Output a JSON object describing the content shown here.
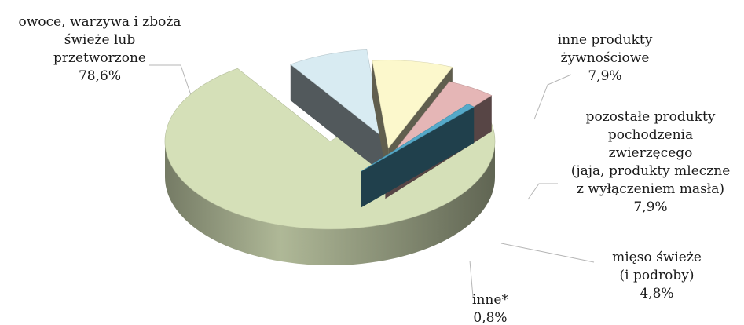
{
  "chart_data": {
    "type": "pie",
    "style": "3d-exploded",
    "slices": [
      {
        "id": "fruit",
        "label_lines": [
          "owoce, warzywa i zboża",
          "świeże lub",
          "przetworzone"
        ],
        "value_text": "78,6%",
        "value": 78.6,
        "color": "#d5e0b8"
      },
      {
        "id": "food",
        "label_lines": [
          "inne produkty",
          "żywnościowe"
        ],
        "value_text": "7,9%",
        "value": 7.9,
        "color": "#d8ebf2"
      },
      {
        "id": "animal",
        "label_lines": [
          "pozostałe produkty",
          "pochodzenia",
          "zwierzęcego",
          "(jaja, produkty mleczne",
          "z wyłączeniem masła)"
        ],
        "value_text": "7,9%",
        "value": 7.9,
        "color": "#fcf8cc"
      },
      {
        "id": "meat",
        "label_lines": [
          "mięso świeże",
          "(i podroby)"
        ],
        "value_text": "4,8%",
        "value": 4.8,
        "color": "#e5b6b6"
      },
      {
        "id": "other",
        "label_lines": [
          "inne*"
        ],
        "value_text": "0,8%",
        "value": 0.8,
        "color": "#55a9c9"
      }
    ]
  }
}
